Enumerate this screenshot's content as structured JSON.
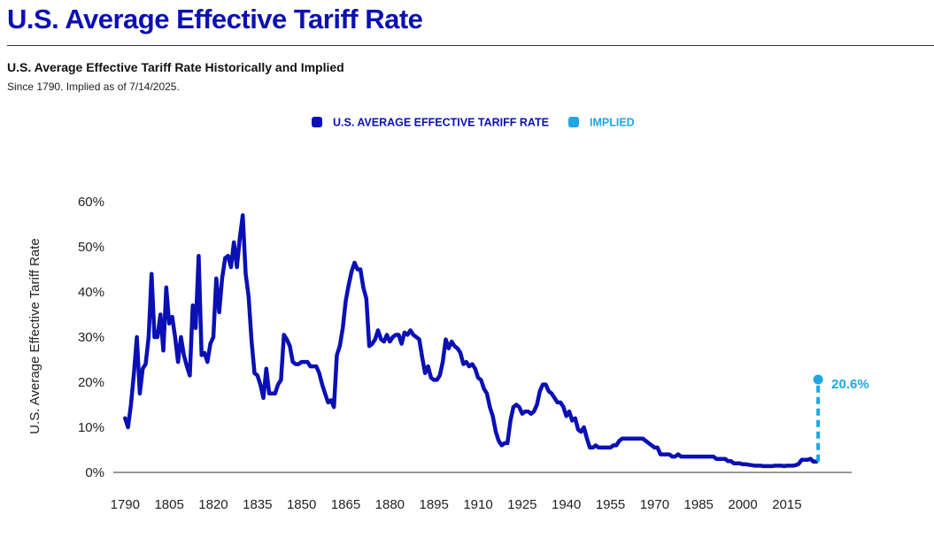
{
  "page": {
    "title": "U.S. Average Effective Tariff Rate"
  },
  "chart_data": {
    "type": "line",
    "title": "U.S. Average Effective Tariff Rate Historically and Implied",
    "subtitle": "Since 1790. Implied as of 7/14/2025.",
    "xlabel": "",
    "ylabel": "U.S. Average Effective Tariff Rate",
    "xlim": [
      1786,
      2037
    ],
    "ylim": [
      0,
      60
    ],
    "x_ticks": [
      1790,
      1805,
      1820,
      1835,
      1850,
      1865,
      1880,
      1895,
      1910,
      1925,
      1940,
      1955,
      1970,
      1985,
      2000,
      2015
    ],
    "y_ticks": [
      0,
      10,
      20,
      30,
      40,
      50,
      60
    ],
    "y_tick_labels": [
      "0%",
      "10%",
      "20%",
      "30%",
      "40%",
      "50%",
      "60%"
    ],
    "grid": false,
    "legend_position": "top-center",
    "series": [
      {
        "name": "U.S. AVERAGE EFFECTIVE TARIFF RATE",
        "color": "#0a10b4",
        "points": [
          [
            1790,
            12
          ],
          [
            1791,
            10
          ],
          [
            1792,
            15
          ],
          [
            1793,
            22
          ],
          [
            1794,
            30
          ],
          [
            1795,
            17.5
          ],
          [
            1796,
            23
          ],
          [
            1797,
            24
          ],
          [
            1798,
            30
          ],
          [
            1799,
            44
          ],
          [
            1800,
            30
          ],
          [
            1801,
            30
          ],
          [
            1802,
            35
          ],
          [
            1803,
            27
          ],
          [
            1804,
            41
          ],
          [
            1805,
            33
          ],
          [
            1806,
            34.5
          ],
          [
            1807,
            30
          ],
          [
            1808,
            24.5
          ],
          [
            1809,
            30
          ],
          [
            1810,
            26
          ],
          [
            1811,
            23.5
          ],
          [
            1812,
            21.5
          ],
          [
            1813,
            37
          ],
          [
            1814,
            32
          ],
          [
            1815,
            48
          ],
          [
            1816,
            26
          ],
          [
            1817,
            26.5
          ],
          [
            1818,
            24.5
          ],
          [
            1819,
            28.5
          ],
          [
            1820,
            30
          ],
          [
            1821,
            43
          ],
          [
            1822,
            35.5
          ],
          [
            1823,
            43
          ],
          [
            1824,
            47.5
          ],
          [
            1825,
            48
          ],
          [
            1826,
            45.5
          ],
          [
            1827,
            51
          ],
          [
            1828,
            45.5
          ],
          [
            1829,
            52
          ],
          [
            1830,
            57
          ],
          [
            1831,
            44
          ],
          [
            1832,
            39
          ],
          [
            1833,
            29
          ],
          [
            1834,
            22
          ],
          [
            1835,
            21.5
          ],
          [
            1836,
            19.5
          ],
          [
            1837,
            16.5
          ],
          [
            1838,
            23
          ],
          [
            1839,
            17.5
          ],
          [
            1840,
            17.5
          ],
          [
            1841,
            17.5
          ],
          [
            1842,
            19.5
          ],
          [
            1843,
            20.5
          ],
          [
            1844,
            30.5
          ],
          [
            1845,
            29.5
          ],
          [
            1846,
            28
          ],
          [
            1847,
            24.5
          ],
          [
            1848,
            24
          ],
          [
            1849,
            24
          ],
          [
            1850,
            24.5
          ],
          [
            1851,
            24.5
          ],
          [
            1852,
            24.5
          ],
          [
            1853,
            23.5
          ],
          [
            1854,
            23.5
          ],
          [
            1855,
            23.5
          ],
          [
            1856,
            22
          ],
          [
            1857,
            19.5
          ],
          [
            1858,
            17.5
          ],
          [
            1859,
            15.5
          ],
          [
            1860,
            16
          ],
          [
            1861,
            14.5
          ],
          [
            1862,
            26
          ],
          [
            1863,
            28
          ],
          [
            1864,
            32
          ],
          [
            1865,
            38
          ],
          [
            1866,
            41.5
          ],
          [
            1867,
            44.5
          ],
          [
            1868,
            46.5
          ],
          [
            1869,
            45
          ],
          [
            1870,
            45
          ],
          [
            1871,
            41
          ],
          [
            1872,
            38.5
          ],
          [
            1873,
            28
          ],
          [
            1874,
            28.5
          ],
          [
            1875,
            29.5
          ],
          [
            1876,
            31.5
          ],
          [
            1877,
            29.5
          ],
          [
            1878,
            29
          ],
          [
            1879,
            30.5
          ],
          [
            1880,
            29
          ],
          [
            1881,
            30
          ],
          [
            1882,
            30.5
          ],
          [
            1883,
            30.5
          ],
          [
            1884,
            28.5
          ],
          [
            1885,
            31
          ],
          [
            1886,
            30.5
          ],
          [
            1887,
            31.5
          ],
          [
            1888,
            30.5
          ],
          [
            1889,
            30
          ],
          [
            1890,
            29.5
          ],
          [
            1891,
            25.5
          ],
          [
            1892,
            22
          ],
          [
            1893,
            23.5
          ],
          [
            1894,
            21
          ],
          [
            1895,
            20.5
          ],
          [
            1896,
            20.5
          ],
          [
            1897,
            21.5
          ],
          [
            1898,
            24.5
          ],
          [
            1899,
            29.5
          ],
          [
            1900,
            27.5
          ],
          [
            1901,
            29
          ],
          [
            1902,
            28
          ],
          [
            1903,
            27.5
          ],
          [
            1904,
            26.5
          ],
          [
            1905,
            24
          ],
          [
            1906,
            24.5
          ],
          [
            1907,
            23.5
          ],
          [
            1908,
            24
          ],
          [
            1909,
            23
          ],
          [
            1910,
            21
          ],
          [
            1911,
            20.5
          ],
          [
            1912,
            18.5
          ],
          [
            1913,
            17.5
          ],
          [
            1914,
            14.5
          ],
          [
            1915,
            12.5
          ],
          [
            1916,
            9
          ],
          [
            1917,
            7
          ],
          [
            1918,
            6
          ],
          [
            1919,
            6.5
          ],
          [
            1920,
            6.5
          ],
          [
            1921,
            11.5
          ],
          [
            1922,
            14.5
          ],
          [
            1923,
            15
          ],
          [
            1924,
            14.5
          ],
          [
            1925,
            13
          ],
          [
            1926,
            13.5
          ],
          [
            1927,
            13.5
          ],
          [
            1928,
            13
          ],
          [
            1929,
            13.5
          ],
          [
            1930,
            15
          ],
          [
            1931,
            18
          ],
          [
            1932,
            19.5
          ],
          [
            1933,
            19.5
          ],
          [
            1934,
            18
          ],
          [
            1935,
            17.5
          ],
          [
            1936,
            16.5
          ],
          [
            1937,
            15.5
          ],
          [
            1938,
            15.5
          ],
          [
            1939,
            14.5
          ],
          [
            1940,
            12.5
          ],
          [
            1941,
            13.5
          ],
          [
            1942,
            11.5
          ],
          [
            1943,
            12
          ],
          [
            1944,
            9.5
          ],
          [
            1945,
            9
          ],
          [
            1946,
            10
          ],
          [
            1947,
            7.5
          ],
          [
            1948,
            5.5
          ],
          [
            1949,
            5.5
          ],
          [
            1950,
            6
          ],
          [
            1951,
            5.5
          ],
          [
            1952,
            5.5
          ],
          [
            1953,
            5.5
          ],
          [
            1954,
            5.5
          ],
          [
            1955,
            5.5
          ],
          [
            1956,
            6
          ],
          [
            1957,
            6
          ],
          [
            1958,
            7
          ],
          [
            1959,
            7.5
          ],
          [
            1960,
            7.5
          ],
          [
            1961,
            7.5
          ],
          [
            1962,
            7.5
          ],
          [
            1963,
            7.5
          ],
          [
            1964,
            7.5
          ],
          [
            1965,
            7.5
          ],
          [
            1966,
            7.5
          ],
          [
            1967,
            7
          ],
          [
            1968,
            6.5
          ],
          [
            1969,
            6
          ],
          [
            1970,
            5.5
          ],
          [
            1971,
            5.5
          ],
          [
            1972,
            4
          ],
          [
            1973,
            4
          ],
          [
            1974,
            4
          ],
          [
            1975,
            4
          ],
          [
            1976,
            3.5
          ],
          [
            1977,
            3.5
          ],
          [
            1978,
            4
          ],
          [
            1979,
            3.5
          ],
          [
            1980,
            3.5
          ],
          [
            1981,
            3.5
          ],
          [
            1982,
            3.5
          ],
          [
            1983,
            3.5
          ],
          [
            1984,
            3.5
          ],
          [
            1985,
            3.5
          ],
          [
            1986,
            3.5
          ],
          [
            1987,
            3.5
          ],
          [
            1988,
            3.5
          ],
          [
            1989,
            3.5
          ],
          [
            1990,
            3.5
          ],
          [
            1991,
            3
          ],
          [
            1992,
            3
          ],
          [
            1993,
            3
          ],
          [
            1994,
            3
          ],
          [
            1995,
            2.5
          ],
          [
            1996,
            2.5
          ],
          [
            1997,
            2
          ],
          [
            1998,
            2
          ],
          [
            1999,
            2
          ],
          [
            2000,
            1.8
          ],
          [
            2001,
            1.8
          ],
          [
            2002,
            1.7
          ],
          [
            2003,
            1.6
          ],
          [
            2004,
            1.5
          ],
          [
            2005,
            1.5
          ],
          [
            2006,
            1.5
          ],
          [
            2007,
            1.4
          ],
          [
            2008,
            1.4
          ],
          [
            2009,
            1.4
          ],
          [
            2010,
            1.4
          ],
          [
            2011,
            1.5
          ],
          [
            2012,
            1.5
          ],
          [
            2013,
            1.5
          ],
          [
            2014,
            1.4
          ],
          [
            2015,
            1.5
          ],
          [
            2016,
            1.5
          ],
          [
            2017,
            1.5
          ],
          [
            2018,
            1.6
          ],
          [
            2019,
            1.9
          ],
          [
            2020,
            2.8
          ],
          [
            2021,
            2.8
          ],
          [
            2022,
            2.8
          ],
          [
            2023,
            3
          ],
          [
            2024,
            2.4
          ],
          [
            2025,
            2.4
          ]
        ]
      },
      {
        "name": "IMPLIED",
        "color": "#1fa6e5",
        "points": [
          [
            2025,
            2.4
          ],
          [
            2025,
            20.6
          ]
        ],
        "label": "20.6%"
      }
    ]
  }
}
